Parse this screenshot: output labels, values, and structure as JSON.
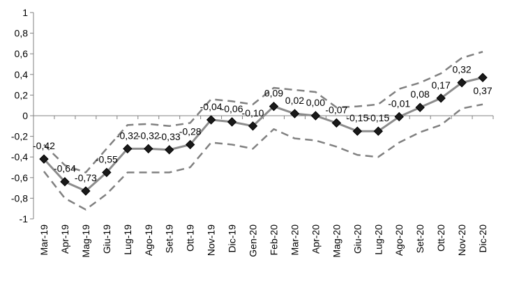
{
  "chart_data": {
    "type": "line",
    "categories": [
      "Mar-19",
      "Apr-19",
      "Mag-19",
      "Giu-19",
      "Lug-19",
      "Ago-19",
      "Set-19",
      "Ott-19",
      "Nov-19",
      "Dic-19",
      "Gen-20",
      "Feb-20",
      "Mar-20",
      "Apr-20",
      "Mag-20",
      "Giu-20",
      "Lug-20",
      "Ago-20",
      "Set-20",
      "Ott-20",
      "Nov-20",
      "Dic-20"
    ],
    "series": [
      {
        "values": [
          -0.42,
          -0.64,
          -0.73,
          -0.55,
          -0.32,
          -0.32,
          -0.33,
          -0.28,
          -0.04,
          -0.06,
          -0.1,
          0.09,
          0.02,
          0.0,
          -0.07,
          -0.15,
          -0.15,
          -0.01,
          0.08,
          0.17,
          0.32,
          0.37
        ],
        "data_labels": [
          "-0,42",
          "-0,64",
          "-0,73",
          "-0,55",
          "-0,32",
          "-0,32",
          "-0,33",
          "-0,28",
          "-0,04",
          "-0,06",
          "-0,10",
          "0,09",
          "0,02",
          "0,00",
          "-0,07",
          "-0,15",
          "-0,15",
          "-0,01",
          "0,08",
          "0,17",
          "0,32",
          "0,37"
        ],
        "color": "#8c8c8c",
        "marker_color": "#1a1a1a"
      },
      {
        "values": [
          -0.28,
          -0.48,
          -0.55,
          -0.32,
          -0.09,
          -0.08,
          -0.1,
          -0.07,
          0.16,
          0.14,
          0.11,
          0.27,
          0.25,
          0.23,
          0.08,
          0.09,
          0.11,
          0.26,
          0.32,
          0.41,
          0.56,
          0.62
        ],
        "color": "#808080",
        "dashed": true
      },
      {
        "values": [
          -0.54,
          -0.8,
          -0.91,
          -0.76,
          -0.55,
          -0.55,
          -0.55,
          -0.5,
          -0.26,
          -0.28,
          -0.32,
          -0.13,
          -0.22,
          -0.24,
          -0.3,
          -0.38,
          -0.4,
          -0.26,
          -0.16,
          -0.09,
          0.07,
          0.11
        ],
        "color": "#808080",
        "dashed": true
      }
    ],
    "ylim": [
      -1,
      1
    ],
    "yticks": [
      -1,
      -0.8,
      -0.6,
      -0.4,
      -0.2,
      0,
      0.2,
      0.4,
      0.6,
      0.8,
      1
    ],
    "ytick_labels": [
      "-1",
      "-0,8",
      "-0,6",
      "-0,4",
      "-0,2",
      "0",
      "0,2",
      "0,4",
      "0,6",
      "0,8",
      "1"
    ],
    "grid": false,
    "legend": "none"
  }
}
